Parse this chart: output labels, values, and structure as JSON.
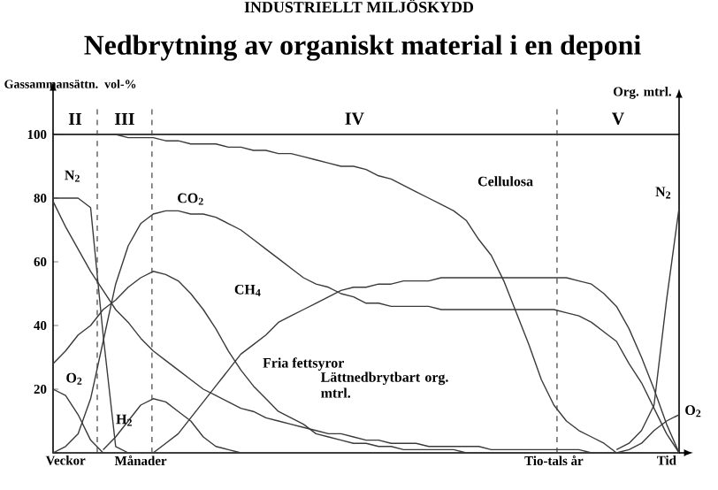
{
  "chart_data": {
    "type": "line",
    "title": "Nedbrytning av organiskt material i en deponi",
    "ylabel": "Gassammansättn. vol-%",
    "y2label": "Org. mtrl.",
    "annotations": [
      "INDUSTRIELLT MILJÖSKYDD",
      "II",
      "III",
      "IV",
      "V"
    ],
    "categories": [
      null,
      "Veckor",
      null,
      null,
      null,
      null,
      null,
      "Månader",
      null,
      null,
      null,
      null,
      null,
      null,
      null,
      null,
      null,
      null,
      null,
      null,
      null,
      null,
      null,
      null,
      null,
      null,
      null,
      null,
      null,
      null,
      null,
      null,
      null,
      null,
      null,
      null,
      null,
      null,
      null,
      null,
      "Tio-tals år",
      null,
      null,
      null,
      null,
      null,
      null,
      null,
      null,
      "Tid",
      null
    ],
    "ylim": [
      0,
      100
    ],
    "yticks": [
      {
        "value": 0,
        "label": null
      },
      20,
      40,
      60,
      80,
      100
    ],
    "grid": false,
    "marker": "none",
    "line_style": "solid",
    "series": [
      {
        "name": "N$_{2}$",
        "color": "#3a3a3a",
        "values": [
          80,
          80,
          80,
          77,
          37,
          2,
          0,
          null,
          null,
          null,
          null,
          null,
          null,
          null,
          null,
          null,
          null,
          null,
          null,
          null,
          null,
          null,
          null,
          null,
          null,
          null,
          null,
          null,
          null,
          null,
          null,
          null,
          null,
          null,
          null,
          null,
          null,
          null,
          null,
          null,
          null,
          null,
          null,
          null,
          null,
          null,
          null,
          null,
          null,
          null,
          null
        ]
      },
      {
        "name": "O$_{2}$",
        "color": "#3a3a3a",
        "values": [
          20,
          18,
          12,
          4,
          0,
          null,
          null,
          null,
          null,
          null,
          null,
          null,
          null,
          null,
          null,
          null,
          null,
          null,
          null,
          null,
          null,
          null,
          null,
          null,
          null,
          null,
          null,
          null,
          null,
          null,
          null,
          null,
          null,
          null,
          null,
          null,
          null,
          null,
          null,
          null,
          null,
          null,
          null,
          null,
          null,
          null,
          null,
          null,
          null,
          null,
          null
        ]
      },
      {
        "name": "CO$_{2}$",
        "color": "#3a3a3a",
        "values": [
          0,
          2,
          6,
          17,
          35,
          53,
          65,
          72,
          75,
          76,
          76,
          75,
          75,
          74,
          72,
          70,
          67,
          64,
          61,
          58,
          55,
          53,
          52,
          50,
          49,
          47,
          47,
          46,
          46,
          46,
          46,
          45,
          45,
          45,
          45,
          45,
          45,
          45,
          45,
          45,
          45,
          44,
          43,
          41,
          38,
          35,
          28,
          22,
          14,
          6,
          0
        ]
      },
      {
        "name": "H$_{2}$",
        "color": "#3a3a3a",
        "values": [
          null,
          null,
          null,
          null,
          1,
          5,
          10,
          15,
          17,
          16,
          13,
          10,
          5,
          2,
          1,
          0,
          null,
          null,
          null,
          null,
          null,
          null,
          null,
          null,
          null,
          null,
          null,
          null,
          null,
          null,
          null,
          null,
          null,
          null,
          null,
          null,
          null,
          null,
          null,
          null,
          null,
          null,
          null,
          null,
          null,
          null,
          null,
          null,
          null,
          null,
          null
        ]
      },
      {
        "name": "CH$_{4}$",
        "color": "#3a3a3a",
        "values": [
          null,
          null,
          null,
          null,
          null,
          null,
          null,
          null,
          0,
          3,
          6,
          11,
          16,
          21,
          26,
          31,
          34,
          37,
          41,
          43,
          45,
          47,
          49,
          51,
          52,
          52,
          53,
          53,
          54,
          54,
          54,
          55,
          55,
          55,
          55,
          55,
          55,
          55,
          55,
          55,
          55,
          55,
          54,
          53,
          50,
          46,
          39,
          30,
          20,
          9,
          0
        ]
      },
      {
        "name": "Fria fettsyror",
        "color": "#3a3a3a",
        "values": [
          28,
          32,
          37,
          40,
          45,
          48,
          52,
          55,
          57,
          56,
          54,
          50,
          45,
          39,
          32,
          26,
          21,
          17,
          13,
          11,
          9,
          6,
          5,
          4,
          3,
          3,
          2,
          2,
          1,
          1,
          1,
          1,
          1,
          0,
          0,
          0,
          0,
          0,
          0,
          null,
          null,
          null,
          null,
          null,
          null,
          null,
          null,
          null,
          null,
          null,
          null
        ]
      },
      {
        "name": "Lättnedbrytbart org. mtrl.",
        "color": "#3a3a3a",
        "values": [
          79,
          71,
          64,
          57,
          51,
          45,
          41,
          36,
          32,
          29,
          26,
          23,
          20,
          18,
          16,
          14,
          13,
          11,
          10,
          9,
          8,
          7,
          6,
          6,
          5,
          4,
          4,
          3,
          3,
          3,
          2,
          2,
          2,
          2,
          2,
          1,
          1,
          1,
          1,
          1,
          1,
          1,
          1,
          0,
          0,
          0,
          0,
          0,
          0,
          0,
          null
        ]
      },
      {
        "name": "Cellulosa",
        "color": "#3a3a3a",
        "values": [
          100,
          100,
          100,
          100,
          100,
          100,
          99,
          99,
          99,
          98,
          98,
          97,
          97,
          97,
          96,
          96,
          95,
          95,
          94,
          94,
          93,
          92,
          91,
          90,
          90,
          89,
          87,
          86,
          84,
          82,
          80,
          78,
          76,
          73,
          67,
          62,
          54,
          44,
          34,
          23,
          15,
          10,
          7,
          5,
          3,
          0,
          null,
          null,
          null,
          null,
          null
        ]
      },
      {
        "name": "N$_{2}$",
        "color": "#3a3a3a",
        "values": [
          null,
          null,
          null,
          null,
          null,
          null,
          null,
          null,
          null,
          null,
          null,
          null,
          null,
          null,
          null,
          null,
          null,
          null,
          null,
          null,
          null,
          null,
          null,
          null,
          null,
          null,
          null,
          null,
          null,
          null,
          null,
          null,
          null,
          null,
          null,
          null,
          null,
          null,
          null,
          null,
          null,
          null,
          null,
          null,
          null,
          1,
          3,
          7,
          15,
          48,
          77
        ]
      },
      {
        "name": "O$_{2}$",
        "color": "#3a3a3a",
        "values": [
          null,
          null,
          null,
          null,
          null,
          null,
          null,
          null,
          null,
          null,
          null,
          null,
          null,
          null,
          null,
          null,
          null,
          null,
          null,
          null,
          null,
          null,
          null,
          null,
          null,
          null,
          null,
          null,
          null,
          null,
          null,
          null,
          null,
          null,
          null,
          null,
          null,
          null,
          null,
          null,
          null,
          null,
          null,
          null,
          null,
          0,
          1,
          3,
          7,
          10,
          12
        ]
      }
    ]
  }
}
